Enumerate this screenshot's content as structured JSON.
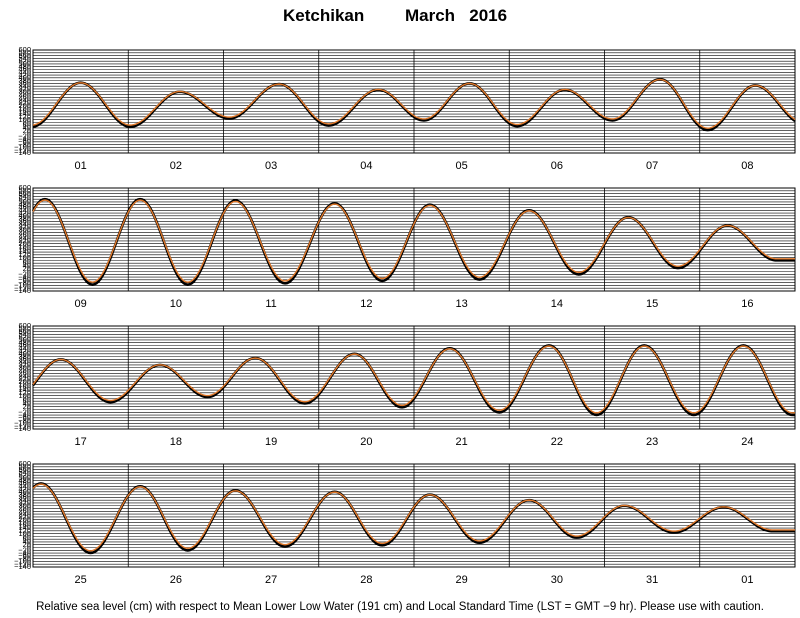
{
  "title": {
    "location": "Ketchikan",
    "month": "March",
    "year": "2016"
  },
  "footer": "Relative sea level (cm) with respect to Mean Lower Low Water (191 cm) and Local Standard Time (LST = GMT −9 hr). Please use with caution.",
  "colors": {
    "observed": "#000000",
    "predicted": "#e0782a",
    "grid": "#000000"
  },
  "chart_data": [
    {
      "type": "line",
      "days": [
        "01",
        "02",
        "03",
        "04",
        "05",
        "06",
        "07",
        "08"
      ],
      "y_ticks": [
        "600",
        "580",
        "560",
        "540",
        "520",
        "500",
        "480",
        "460",
        "440",
        "420",
        "400",
        "380",
        "360",
        "340",
        "320",
        "300",
        "280",
        "260",
        "240",
        "220",
        "200",
        "180",
        "160",
        "140",
        "120",
        "100",
        "80",
        "60",
        "40",
        "20",
        "0",
        "−20",
        "−40",
        "−60",
        "−80",
        "−100",
        "−120",
        "−140"
      ],
      "ylim": [
        -140,
        600
      ],
      "start_hour": 0,
      "highs": [
        {
          "t": 12,
          "h": 365
        },
        {
          "t": 37,
          "h": 300
        },
        {
          "t": 62,
          "h": 355
        },
        {
          "t": 87,
          "h": 315
        },
        {
          "t": 110,
          "h": 360
        },
        {
          "t": 134,
          "h": 315
        },
        {
          "t": 158,
          "h": 390
        },
        {
          "t": 182,
          "h": 345
        }
      ]
    },
    {
      "type": "line",
      "days": [
        "09",
        "10",
        "11",
        "12",
        "13",
        "14",
        "15",
        "16"
      ],
      "y_ticks": [
        "600",
        "580",
        "560",
        "540",
        "520",
        "500",
        "480",
        "460",
        "440",
        "420",
        "400",
        "380",
        "360",
        "340",
        "320",
        "300",
        "280",
        "260",
        "240",
        "220",
        "200",
        "180",
        "160",
        "140",
        "120",
        "100",
        "80",
        "60",
        "40",
        "20",
        "0",
        "−20",
        "−40",
        "−60",
        "−80",
        "−100",
        "−120",
        "−140"
      ],
      "ylim": [
        -140,
        600
      ],
      "start_hour": 192,
      "highs": [
        {
          "t": 195,
          "h": 520
        },
        {
          "t": 219,
          "h": 520
        },
        {
          "t": 243,
          "h": 510
        },
        {
          "t": 268,
          "h": 490
        },
        {
          "t": 292,
          "h": 480
        },
        {
          "t": 317,
          "h": 440
        },
        {
          "t": 342,
          "h": 390
        },
        {
          "t": 367,
          "h": 330
        }
      ]
    },
    {
      "type": "line",
      "days": [
        "17",
        "18",
        "19",
        "20",
        "21",
        "22",
        "23",
        "24"
      ],
      "y_ticks": [
        "600",
        "580",
        "560",
        "540",
        "520",
        "500",
        "480",
        "460",
        "440",
        "420",
        "400",
        "380",
        "360",
        "340",
        "320",
        "300",
        "280",
        "260",
        "240",
        "220",
        "200",
        "180",
        "160",
        "140",
        "120",
        "100",
        "80",
        "60",
        "40",
        "20",
        "0",
        "−20",
        "−40",
        "−60",
        "−80",
        "−100",
        "−120",
        "−140"
      ],
      "ylim": [
        -140,
        600
      ],
      "start_hour": 384,
      "highs": [
        {
          "t": 391,
          "h": 360
        },
        {
          "t": 416,
          "h": 320
        },
        {
          "t": 440,
          "h": 370
        },
        {
          "t": 465,
          "h": 400
        },
        {
          "t": 489,
          "h": 440
        },
        {
          "t": 514,
          "h": 460
        },
        {
          "t": 538,
          "h": 460
        },
        {
          "t": 563,
          "h": 460
        }
      ]
    },
    {
      "type": "line",
      "days": [
        "25",
        "26",
        "27",
        "28",
        "29",
        "30",
        "31",
        "01"
      ],
      "y_ticks": [
        "600",
        "580",
        "560",
        "540",
        "520",
        "500",
        "480",
        "460",
        "440",
        "420",
        "400",
        "380",
        "360",
        "340",
        "320",
        "300",
        "280",
        "260",
        "240",
        "220",
        "200",
        "180",
        "160",
        "140",
        "120",
        "100",
        "80",
        "60",
        "40",
        "20",
        "0",
        "−20",
        "−40",
        "−60",
        "−80",
        "−100",
        "−120",
        "−140"
      ],
      "ylim": [
        -140,
        600
      ],
      "start_hour": 576,
      "highs": [
        {
          "t": 578,
          "h": 460
        },
        {
          "t": 603,
          "h": 440
        },
        {
          "t": 627,
          "h": 410
        },
        {
          "t": 652,
          "h": 400
        },
        {
          "t": 676,
          "h": 380
        },
        {
          "t": 701,
          "h": 340
        },
        {
          "t": 725,
          "h": 300
        },
        {
          "t": 750,
          "h": 290
        }
      ]
    }
  ]
}
